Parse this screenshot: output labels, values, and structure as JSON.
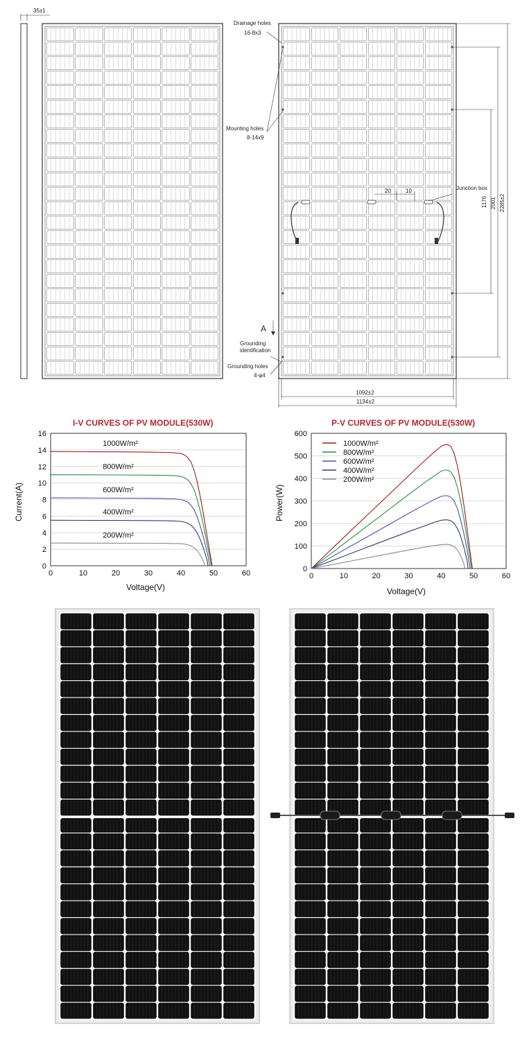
{
  "drawing": {
    "side_profile_label": "35±1",
    "drainage_holes": {
      "title": "Drainage holes",
      "spec": "16-8x3"
    },
    "mounting_holes": {
      "title": "Mounting holes",
      "spec": "8-14x9"
    },
    "junction_box": {
      "title": "Junction box",
      "dim_a": "20",
      "dim_b": "10"
    },
    "section_marker": "A",
    "grounding_identification": "Grounding identification",
    "grounding_holes": {
      "title": "Grounding holes",
      "spec": "4-φ4"
    },
    "dim_1176": "1176",
    "dim_2001": "2001",
    "dim_height": "2285±2",
    "dim_inner_width": "1092±2",
    "dim_width": "1134±2"
  },
  "chart_data": [
    {
      "type": "line",
      "title": "I-V CURVES OF PV MODULE(530W)",
      "xlabel": "Voltage(V)",
      "ylabel": "Current(A)",
      "xlim": [
        0,
        60
      ],
      "ylim": [
        0,
        16
      ],
      "xticks": [
        0,
        10,
        20,
        30,
        40,
        50,
        60
      ],
      "yticks": [
        0,
        2,
        4,
        6,
        8,
        10,
        12,
        14,
        16
      ],
      "grid": true,
      "series": [
        {
          "name": "1000W/m²",
          "color": "#9b1c1c",
          "x": [
            0,
            10,
            20,
            30,
            35,
            38,
            40,
            41,
            42,
            43,
            44,
            45,
            46,
            47,
            48,
            49,
            49.6
          ],
          "y": [
            13.8,
            13.78,
            13.76,
            13.73,
            13.7,
            13.65,
            13.55,
            13.4,
            13.1,
            12.6,
            11.6,
            10.1,
            8.2,
            6.0,
            3.6,
            1.3,
            0
          ]
        },
        {
          "name": "800W/m²",
          "color": "#2e8b45",
          "x": [
            0,
            10,
            20,
            30,
            35,
            38,
            40,
            41,
            42,
            43,
            44,
            45,
            46,
            47,
            48,
            49,
            49.3
          ],
          "y": [
            11.0,
            10.99,
            10.97,
            10.95,
            10.92,
            10.88,
            10.8,
            10.65,
            10.4,
            9.95,
            9.2,
            8.0,
            6.5,
            4.7,
            2.7,
            0.7,
            0
          ]
        },
        {
          "name": "600W/m²",
          "color": "#4b4fa6",
          "x": [
            0,
            10,
            20,
            30,
            35,
            38,
            40,
            41,
            42,
            43,
            44,
            45,
            46,
            47,
            48,
            48.9
          ],
          "y": [
            8.2,
            8.19,
            8.17,
            8.15,
            8.12,
            8.08,
            8.0,
            7.88,
            7.7,
            7.35,
            6.8,
            5.9,
            4.7,
            3.3,
            1.7,
            0
          ]
        },
        {
          "name": "400W/m²",
          "color": "#2c3f66",
          "x": [
            0,
            10,
            20,
            30,
            35,
            38,
            40,
            41,
            42,
            43,
            44,
            45,
            46,
            47,
            48,
            48.3
          ],
          "y": [
            5.5,
            5.49,
            5.48,
            5.46,
            5.44,
            5.41,
            5.36,
            5.28,
            5.15,
            4.92,
            4.55,
            3.95,
            3.1,
            2.0,
            0.7,
            0
          ]
        },
        {
          "name": "200W/m²",
          "color": "#8a8a8a",
          "x": [
            0,
            10,
            20,
            30,
            35,
            38,
            40,
            41,
            42,
            43,
            44,
            45,
            46,
            47,
            47.3
          ],
          "y": [
            2.75,
            2.74,
            2.73,
            2.72,
            2.71,
            2.69,
            2.66,
            2.62,
            2.55,
            2.42,
            2.2,
            1.82,
            1.25,
            0.45,
            0
          ]
        }
      ]
    },
    {
      "type": "line",
      "title": "P-V CURVES OF PV MODULE(530W)",
      "xlabel": "Voltage(V)",
      "ylabel": "Power(W)",
      "xlim": [
        0,
        60
      ],
      "ylim": [
        0,
        600
      ],
      "xticks": [
        0,
        10,
        20,
        30,
        40,
        50,
        60
      ],
      "yticks": [
        0,
        100,
        200,
        300,
        400,
        500,
        600
      ],
      "grid": true,
      "legend": "top-left",
      "series": [
        {
          "name": "1000W/m²",
          "color": "#9b1c1c",
          "x": [
            0,
            10,
            20,
            30,
            35,
            38,
            40,
            41,
            42,
            43,
            44,
            45,
            46,
            47,
            48,
            49,
            49.6
          ],
          "y": [
            0,
            138,
            275,
            412,
            480,
            519,
            542,
            549,
            550,
            542,
            510,
            455,
            377,
            282,
            173,
            64,
            0
          ]
        },
        {
          "name": "800W/m²",
          "color": "#2e8b45",
          "x": [
            0,
            10,
            20,
            30,
            35,
            38,
            40,
            41,
            42,
            43,
            44,
            45,
            46,
            47,
            48,
            49,
            49.3
          ],
          "y": [
            0,
            110,
            219,
            329,
            382,
            413,
            432,
            437,
            437,
            428,
            405,
            360,
            299,
            221,
            130,
            34,
            0
          ]
        },
        {
          "name": "600W/m²",
          "color": "#4b4fa6",
          "x": [
            0,
            10,
            20,
            30,
            35,
            38,
            40,
            41,
            42,
            43,
            44,
            45,
            46,
            47,
            48,
            48.9
          ],
          "y": [
            0,
            82,
            163,
            245,
            284,
            307,
            320,
            323,
            323,
            316,
            299,
            266,
            216,
            155,
            82,
            0
          ]
        },
        {
          "name": "400W/m²",
          "color": "#2c3f66",
          "x": [
            0,
            10,
            20,
            30,
            35,
            38,
            40,
            41,
            42,
            43,
            44,
            45,
            46,
            47,
            48,
            48.3
          ],
          "y": [
            0,
            55,
            110,
            164,
            190,
            206,
            214,
            216,
            216,
            212,
            200,
            178,
            143,
            94,
            34,
            0
          ]
        },
        {
          "name": "200W/m²",
          "color": "#8a8a8a",
          "x": [
            0,
            10,
            20,
            30,
            35,
            38,
            40,
            41,
            42,
            43,
            44,
            45,
            46,
            47,
            47.3
          ],
          "y": [
            0,
            27,
            55,
            82,
            95,
            102,
            106,
            107,
            107,
            104,
            97,
            82,
            58,
            21,
            0
          ]
        }
      ]
    }
  ]
}
